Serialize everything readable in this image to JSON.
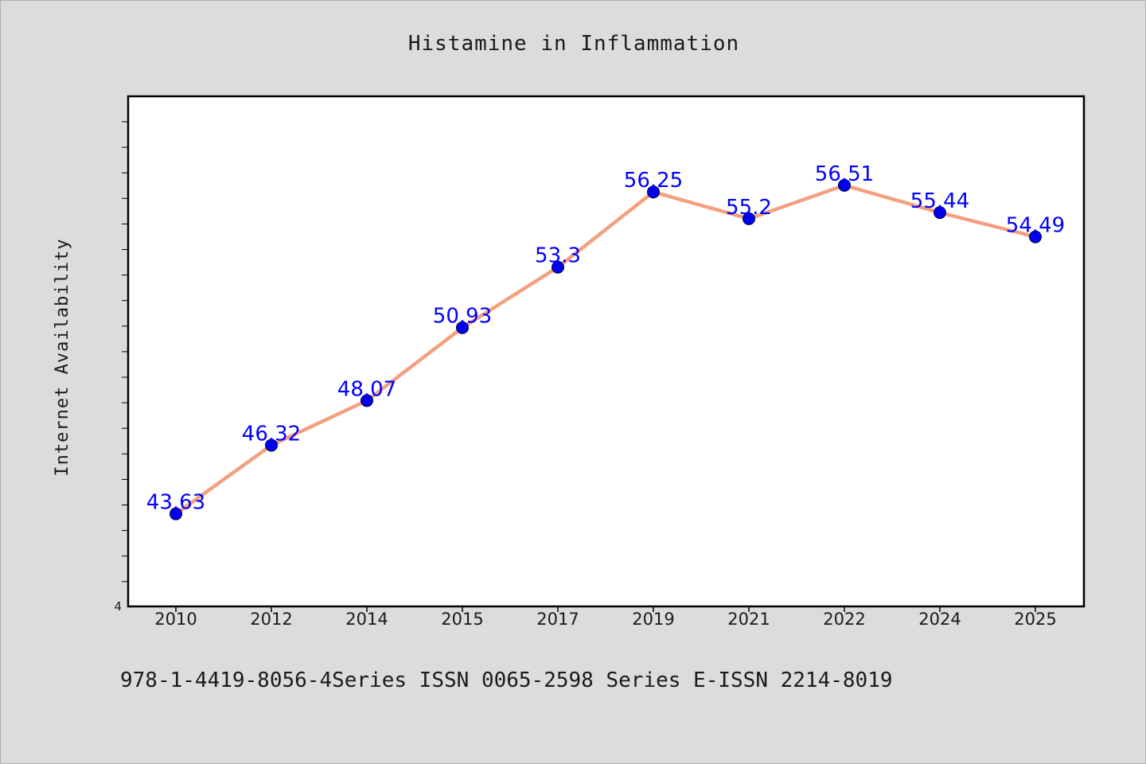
{
  "chart_data": {
    "type": "line",
    "title": "Histamine in Inflammation",
    "ylabel": "Internet Availability",
    "xlabel": "",
    "categories": [
      "2010",
      "2012",
      "2014",
      "2015",
      "2017",
      "2019",
      "2021",
      "2022",
      "2024",
      "2025"
    ],
    "series": [
      {
        "values": [
          43.63,
          46.32,
          48.07,
          50.93,
          53.3,
          56.25,
          55.2,
          56.51,
          55.44,
          54.49
        ],
        "labels": [
          "43.63",
          "46.32",
          "48.07",
          "50.93",
          "53.3",
          "56.25",
          "55.2",
          "56.51",
          "55.44",
          "54.49"
        ],
        "line_color": "#f4a07f",
        "marker_color": "#0000ee"
      }
    ],
    "ytick_labels": [
      "4"
    ],
    "ylim": [
      40,
      60
    ],
    "grid": false,
    "label_color": "#0000ff"
  },
  "footer": {
    "text": "978-1-4419-8056-4Series ISSN 0065-2598 Series E-ISSN 2214-8019"
  }
}
